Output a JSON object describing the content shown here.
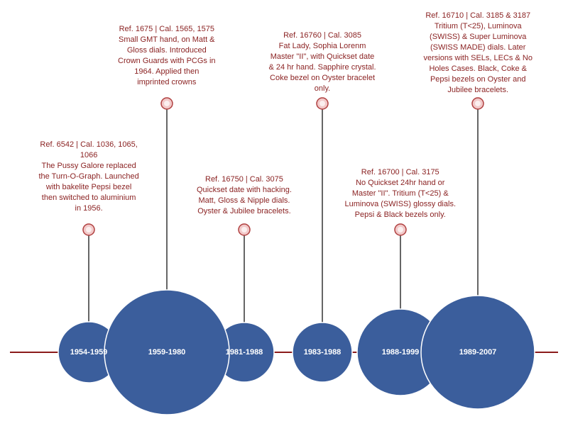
{
  "colors": {
    "timeline": "#8b1a1a",
    "circle_fill": "#3b5e9c",
    "circle_stroke": "#ffffff",
    "stem": "#000000",
    "marker_fill": "#f2c9c9",
    "marker_stroke": "#b04040",
    "note_text": "#8b2323",
    "era_text": "#ffffff"
  },
  "eras": [
    {
      "label": "1954-1959"
    },
    {
      "label": "1959-1980"
    },
    {
      "label": "1981-1988"
    },
    {
      "label": "1983-1988"
    },
    {
      "label": "1988-1999"
    },
    {
      "label": "1989-2007"
    }
  ],
  "notes": [
    {
      "lines": [
        "Ref. 6542 | Cal. 1036, 1065,",
        "1066",
        "The Pussy Galore replaced",
        "the Turn-O-Graph. Launched",
        "with bakelite Pepsi bezel",
        "then switched to aluminium",
        "in 1956."
      ]
    },
    {
      "lines": [
        "Ref. 1675 | Cal. 1565, 1575",
        "Small GMT hand, on Matt &",
        "Gloss dials. Introduced",
        "Crown Guards with PCGs in",
        "1964. Applied then",
        "imprinted crowns"
      ]
    },
    {
      "lines": [
        "Ref. 16750 | Cal. 3075",
        "Quickset date with hacking.",
        "Matt, Gloss & Nipple dials.",
        "Oyster & Jubilee bracelets."
      ]
    },
    {
      "lines": [
        "Ref. 16760 | Cal. 3085",
        "Fat Lady, Sophia Lorenm",
        "Master \"II\", with Quickset date",
        "& 24 hr hand. Sapphire crystal.",
        "Coke bezel on Oyster bracelet",
        "only."
      ]
    },
    {
      "lines": [
        "Ref. 16700 | Cal. 3175",
        "No Quickset 24hr hand or",
        "Master \"II\". Tritium (T<25) &",
        "Luminova (SWISS) glossy dials.",
        "Pepsi & Black bezels only."
      ]
    },
    {
      "lines": [
        "Ref. 16710 | Cal. 3185 & 3187",
        "Tritium (T<25), Luminova",
        "(SWISS) & Super Luminova",
        "(SWISS MADE) dials. Later",
        "versions with SELs, LECs & No",
        "Holes Cases. Black, Coke &",
        "Pepsi bezels on Oyster and",
        "Jubilee bracelets."
      ]
    }
  ]
}
